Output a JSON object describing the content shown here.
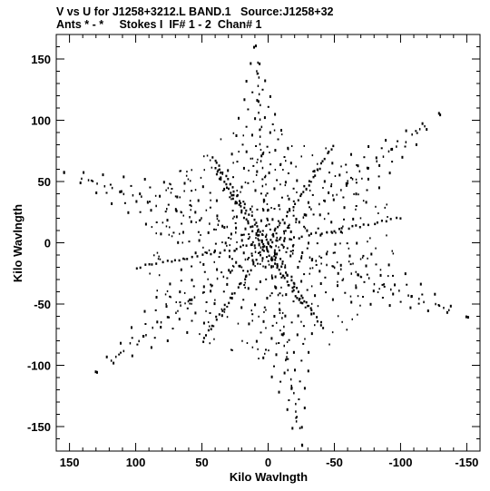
{
  "header": {
    "title_line1": "V vs U for J1258+3212.L BAND.1   Source:J1258+32",
    "title_line2": "Ants * - *     Stokes I  IF# 1 - 2  Chan# 1"
  },
  "chart_data": {
    "type": "scatter",
    "xlabel": "Kilo Wavlngth",
    "ylabel": "Kilo Wavlngth",
    "xlim": [
      160,
      -160
    ],
    "ylim": [
      -170,
      170
    ],
    "x_ticks": [
      150,
      100,
      50,
      0,
      -50,
      -100,
      -150
    ],
    "y_ticks": [
      150,
      100,
      50,
      0,
      -50,
      -100,
      -150
    ],
    "grid": false,
    "marker_color": "#000000",
    "arms": [
      {
        "x": 10,
        "y": 160
      },
      {
        "x": -130,
        "y": 105
      },
      {
        "x": -150,
        "y": -60
      },
      {
        "x": -25,
        "y": -165
      },
      {
        "x": 130,
        "y": -105
      },
      {
        "x": 155,
        "y": 58
      }
    ],
    "ridge_tracks": [
      [
        {
          "x": 42,
          "y": 70
        },
        {
          "x": -42,
          "y": -70
        }
      ],
      [
        {
          "x": -100,
          "y": 20
        },
        {
          "x": 100,
          "y": -20
        }
      ],
      [
        {
          "x": 40,
          "y": 60
        },
        {
          "x": -25,
          "y": -50
        }
      ],
      [
        {
          "x": -50,
          "y": 80
        },
        {
          "x": 50,
          "y": -80
        }
      ]
    ]
  }
}
